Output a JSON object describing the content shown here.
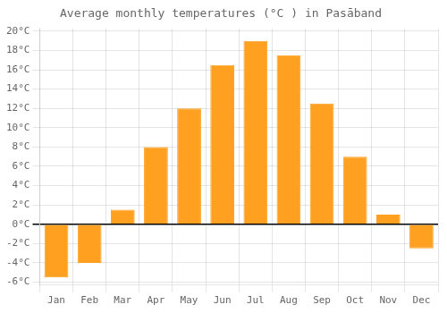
{
  "chart_data": {
    "type": "bar",
    "title": "Average monthly temperatures (°C ) in Pasāband",
    "categories": [
      "Jan",
      "Feb",
      "Mar",
      "Apr",
      "May",
      "Jun",
      "Jul",
      "Aug",
      "Sep",
      "Oct",
      "Nov",
      "Dec"
    ],
    "values": [
      -5.5,
      -4.0,
      1.5,
      8.0,
      12.0,
      16.5,
      19.0,
      17.5,
      12.5,
      7.0,
      1.0,
      -2.5
    ],
    "color": "#FFA020",
    "ylim": [
      -6.3,
      20.3
    ],
    "yticks": [
      {
        "value": -6,
        "label": "-6°C"
      },
      {
        "value": -4,
        "label": "-4°C"
      },
      {
        "value": -2,
        "label": "-2°C"
      },
      {
        "value": 0,
        "label": "0°C"
      },
      {
        "value": 2,
        "label": "2°C"
      },
      {
        "value": 4,
        "label": "4°C"
      },
      {
        "value": 6,
        "label": "6°C"
      },
      {
        "value": 8,
        "label": "8°C"
      },
      {
        "value": 10,
        "label": "10°C"
      },
      {
        "value": 12,
        "label": "12°C"
      },
      {
        "value": 14,
        "label": "14°C"
      },
      {
        "value": 16,
        "label": "16°C"
      },
      {
        "value": 18,
        "label": "18°C"
      },
      {
        "value": 20,
        "label": "20°C"
      }
    ],
    "grid": true
  }
}
